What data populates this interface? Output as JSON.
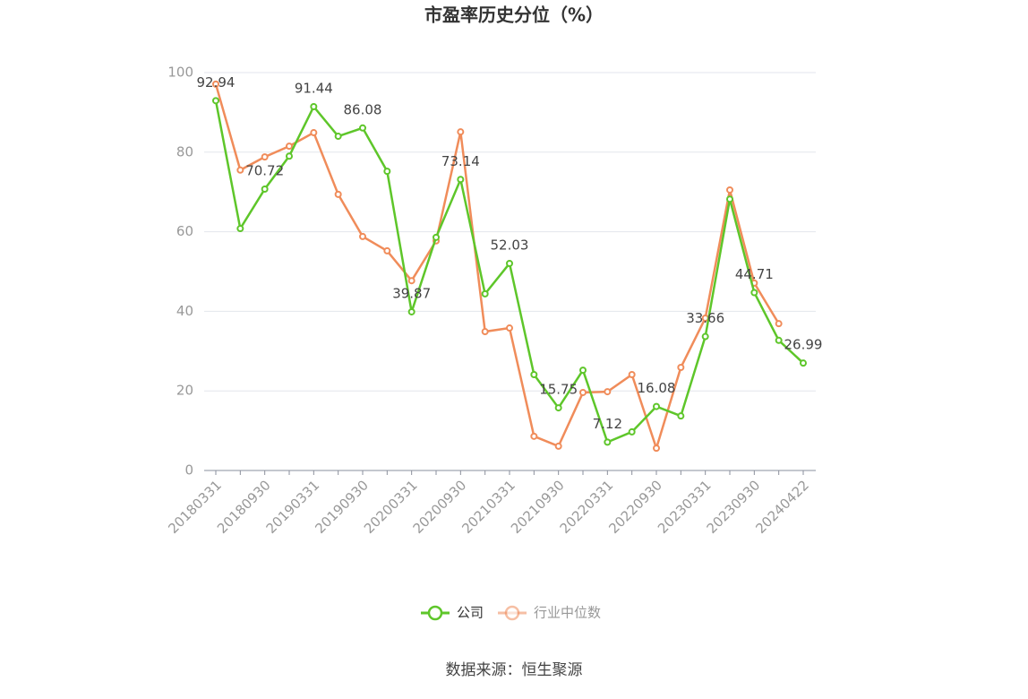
{
  "chart_data": {
    "type": "line",
    "title": "市盈率历史分位（%）",
    "categories": [
      "20180331",
      null,
      "20180930",
      null,
      "20190331",
      null,
      "20190930",
      null,
      "20200331",
      null,
      "20200930",
      null,
      "20210331",
      null,
      "20210930",
      null,
      "20220331",
      null,
      "20220930",
      null,
      "20230331",
      null,
      "20230930",
      null,
      "20240422"
    ],
    "series": [
      {
        "name": "公司",
        "color": "#5ec62a",
        "values": [
          92.94,
          60.8,
          70.72,
          79.0,
          91.44,
          84.0,
          86.08,
          75.2,
          39.87,
          58.6,
          73.14,
          44.4,
          52.03,
          24.1,
          15.75,
          25.2,
          7.12,
          9.7,
          16.08,
          13.7,
          33.66,
          68.2,
          44.71,
          32.7,
          26.99
        ],
        "value_labels": [
          "92.94",
          null,
          "70.72",
          null,
          "91.44",
          null,
          "86.08",
          null,
          "39.87",
          null,
          "73.14",
          null,
          "52.03",
          null,
          "15.75",
          null,
          "7.12",
          null,
          "16.08",
          null,
          "33.66",
          null,
          "44.71",
          null,
          "26.99"
        ]
      },
      {
        "name": "行业中位数",
        "color": "#f08c5a",
        "values": [
          97.1,
          75.5,
          78.8,
          81.5,
          84.9,
          69.4,
          58.8,
          55.2,
          47.7,
          57.7,
          85.1,
          34.9,
          35.8,
          8.6,
          6.1,
          19.6,
          19.8,
          24.1,
          5.6,
          25.9,
          38.3,
          70.5,
          47.1,
          36.9,
          null
        ]
      }
    ],
    "ylim": [
      0,
      100
    ],
    "yticks": [
      0,
      20,
      40,
      60,
      80,
      100
    ],
    "grid": true,
    "source": "数据来源：恒生聚源"
  }
}
